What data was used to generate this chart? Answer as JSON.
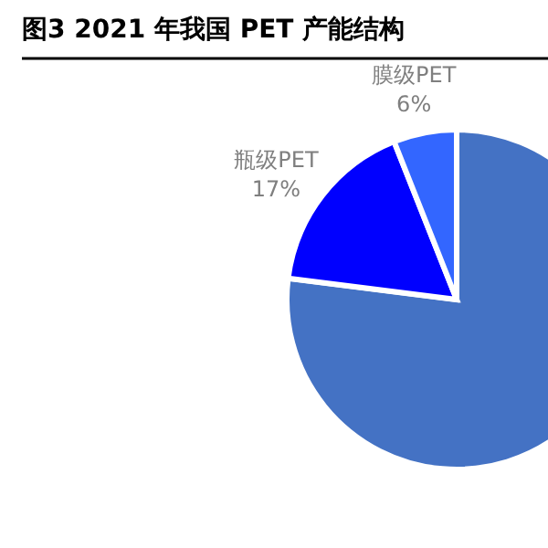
{
  "chart_data": {
    "type": "pie",
    "title": "图3  2021 年我国 PET 产能结构",
    "categories": [
      null,
      "瓶级PET",
      "膜级PET"
    ],
    "values": [
      77,
      17,
      6
    ],
    "value_labels": [
      null,
      "17%",
      "6%"
    ],
    "colors": [
      "#4472c4",
      "#0000ff",
      "#3366ff"
    ]
  }
}
